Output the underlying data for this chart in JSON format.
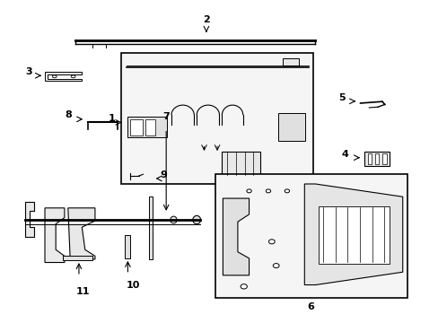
{
  "background_color": "#ffffff",
  "border_color": "#000000",
  "line_color": "#000000",
  "text_color": "#000000",
  "fig_width": 4.89,
  "fig_height": 3.6,
  "dpi": 100
}
